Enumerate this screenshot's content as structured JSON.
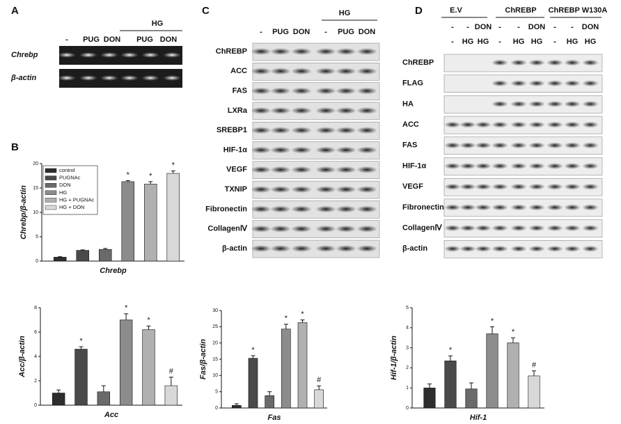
{
  "blots": [
    {
      "label": "A",
      "treatment": "HG",
      "lanes": [
        "-",
        "PUG",
        "DON",
        "PUG",
        "DON"
      ],
      "rows": [
        "Chrebp",
        "β-actin"
      ]
    },
    {
      "label": "C",
      "treatment": "HG",
      "lanes": [
        "-",
        "PUG",
        "DON",
        "-",
        "PUG",
        "DON"
      ],
      "rows": [
        "ChREBP",
        "ACC",
        "FAS",
        "LXRa",
        "SREBP1",
        "HIF-1α",
        "VEGF",
        "TXNIP",
        "Fibronectin",
        "CollagenⅣ",
        "β-actin"
      ]
    },
    {
      "label": "D",
      "groups": [
        "E.V",
        "ChREBP",
        "ChREBP W130A"
      ],
      "lanes1": [
        "-",
        "-",
        "DON",
        "-",
        "-",
        "DON",
        "-",
        "-",
        "DON"
      ],
      "lanes2": [
        "-",
        "HG",
        "HG",
        "-",
        "HG",
        "HG",
        "-",
        "HG",
        "HG"
      ],
      "rows": [
        "ChREBP",
        "FLAG",
        "HA",
        "ACC",
        "FAS",
        "HIF-1α",
        "VEGF",
        "Fibronectin",
        "CollagenⅣ",
        "β-actin"
      ]
    }
  ],
  "panel_b_label": "B",
  "chart_data": [
    {
      "type": "bar",
      "ylabel": "Chrebp/β-actin",
      "xlabel": "Chrebp",
      "categories": [
        "control",
        "PUGNAc",
        "DON",
        "HG",
        "HG + PUGNAc",
        "HG + DON"
      ],
      "values": [
        0.8,
        2.2,
        2.4,
        16.3,
        15.8,
        18.0
      ],
      "errors": [
        0.1,
        0.1,
        0.2,
        0.2,
        0.5,
        0.5
      ],
      "annotations": [
        null,
        null,
        null,
        "*",
        "*",
        "*"
      ],
      "colors": [
        "#2e2e2e",
        "#4a4a4a",
        "#6a6a6a",
        "#8c8c8c",
        "#b0b0b0",
        "#d8d8d8"
      ],
      "ylim": [
        0,
        20
      ],
      "yticks": [
        0,
        5,
        10,
        15,
        20
      ]
    },
    {
      "type": "bar",
      "ylabel": "Acc/β-actin",
      "xlabel": "Acc",
      "values": [
        1.0,
        4.6,
        1.1,
        7.0,
        6.2,
        1.6
      ],
      "errors": [
        0.25,
        0.2,
        0.5,
        0.5,
        0.3,
        0.7
      ],
      "annotations": [
        null,
        "*",
        null,
        "*",
        "*",
        "#"
      ],
      "colors": [
        "#2e2e2e",
        "#4a4a4a",
        "#6a6a6a",
        "#8c8c8c",
        "#b0b0b0",
        "#d8d8d8"
      ],
      "ylim": [
        0,
        8
      ],
      "yticks": [
        0,
        2,
        4,
        6,
        8
      ]
    },
    {
      "type": "bar",
      "ylabel": "Fas/β-actin",
      "xlabel": "Fas",
      "values": [
        0.8,
        15.3,
        3.8,
        24.3,
        26.3,
        5.6
      ],
      "errors": [
        0.5,
        0.8,
        1.2,
        1.5,
        0.8,
        1.2
      ],
      "annotations": [
        null,
        "*",
        null,
        "*",
        "*",
        "#"
      ],
      "colors": [
        "#2e2e2e",
        "#4a4a4a",
        "#6a6a6a",
        "#8c8c8c",
        "#b0b0b0",
        "#d8d8d8"
      ],
      "ylim": [
        0,
        30
      ],
      "yticks": [
        0,
        5,
        10,
        15,
        20,
        25,
        30
      ]
    },
    {
      "type": "bar",
      "ylabel": "Hif-1/β-actin",
      "xlabel": "Hif-1",
      "values": [
        1.0,
        2.35,
        0.95,
        3.7,
        3.25,
        1.6
      ],
      "errors": [
        0.2,
        0.25,
        0.3,
        0.35,
        0.25,
        0.25
      ],
      "annotations": [
        null,
        "*",
        null,
        "*",
        "*",
        "#"
      ],
      "colors": [
        "#2e2e2e",
        "#4a4a4a",
        "#6a6a6a",
        "#8c8c8c",
        "#b0b0b0",
        "#d8d8d8"
      ],
      "ylim": [
        0,
        5
      ],
      "yticks": [
        0,
        1,
        2,
        3,
        4,
        5
      ]
    }
  ]
}
